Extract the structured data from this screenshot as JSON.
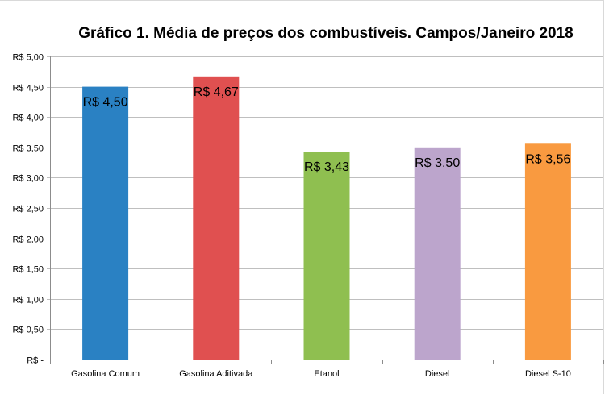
{
  "chart_data": {
    "type": "bar",
    "title": "Gráfico 1. Média de preços dos combustíveis. Campos/Janeiro 2018",
    "categories": [
      "Gasolina Comum",
      "Gasolina Aditivada",
      "Etanol",
      "Diesel",
      "Diesel S-10"
    ],
    "values": [
      4.5,
      4.67,
      3.43,
      3.5,
      3.56
    ],
    "data_labels": [
      "R$ 4,50",
      "R$ 4,67",
      "R$ 3,43",
      "R$ 3,50",
      "R$ 3,56"
    ],
    "colors": [
      "#2a81c3",
      "#e05050",
      "#8fbf50",
      "#bca5cc",
      "#f99a40"
    ],
    "ylim": [
      0,
      5
    ],
    "yticks": [
      0,
      0.5,
      1,
      1.5,
      2,
      2.5,
      3,
      3.5,
      4,
      4.5,
      5
    ],
    "ytick_labels": [
      "R$ -",
      "R$ 0,50",
      "R$ 1,00",
      "R$ 1,50",
      "R$ 2,00",
      "R$ 2,50",
      "R$ 3,00",
      "R$ 3,50",
      "R$ 4,00",
      "R$ 4,50",
      "R$ 5,00"
    ],
    "xlabel": "",
    "ylabel": "",
    "grid": true,
    "legend": "none"
  }
}
